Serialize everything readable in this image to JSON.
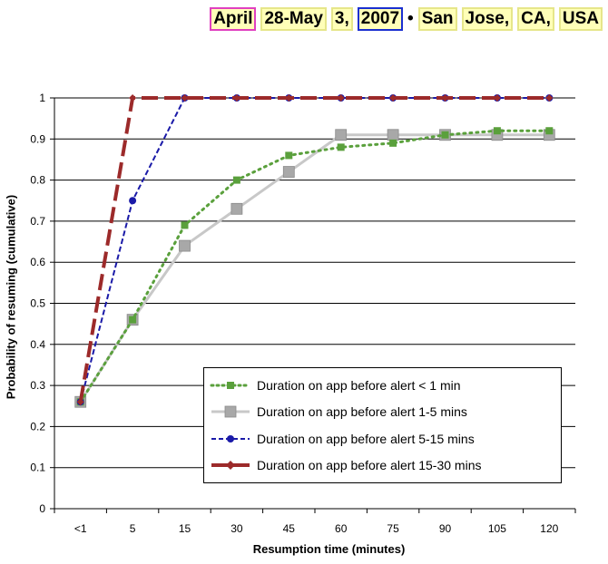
{
  "header": {
    "parts": [
      "April",
      "28-May",
      "3,",
      "2007",
      "•",
      "San",
      "Jose,",
      "CA,",
      "USA"
    ]
  },
  "chart_data": {
    "type": "line",
    "title": "",
    "xlabel": "Resumption time (minutes)",
    "ylabel": "Probability of resuming (cumulative)",
    "categories": [
      "<1",
      "5",
      "15",
      "30",
      "45",
      "60",
      "75",
      "90",
      "105",
      "120"
    ],
    "ylim": [
      0,
      1
    ],
    "yticks": [
      "0",
      "0.1",
      "0.2",
      "0.3",
      "0.4",
      "0.5",
      "0.6",
      "0.7",
      "0.8",
      "0.9",
      "1"
    ],
    "grid": "horizontal",
    "legend_position": "bottom-right",
    "series": [
      {
        "name": "Duration on app before alert < 1 min",
        "color": "#5aa03c",
        "style": "dotted",
        "marker": "square",
        "values": [
          0.26,
          0.46,
          0.69,
          0.8,
          0.86,
          0.88,
          0.89,
          0.91,
          0.92,
          0.92
        ]
      },
      {
        "name": "Duration on app before alert 1-5 mins",
        "color": "#c8c8c8",
        "style": "solid",
        "marker": "square-large",
        "values": [
          0.26,
          0.46,
          0.64,
          0.73,
          0.82,
          0.91,
          0.91,
          0.91,
          0.91,
          0.91
        ]
      },
      {
        "name": "Duration on app before alert 5-15 mins",
        "color": "#1a1aa8",
        "style": "dashed",
        "marker": "circle",
        "values": [
          0.26,
          0.75,
          1.0,
          1.0,
          1.0,
          1.0,
          1.0,
          1.0,
          1.0,
          1.0
        ]
      },
      {
        "name": "Duration on app before alert 15-30 mins",
        "color": "#9c2a2a",
        "style": "longdash",
        "marker": "diamond",
        "values": [
          0.26,
          1.0,
          1.0,
          1.0,
          1.0,
          1.0,
          1.0,
          1.0,
          1.0,
          1.0
        ]
      }
    ]
  }
}
